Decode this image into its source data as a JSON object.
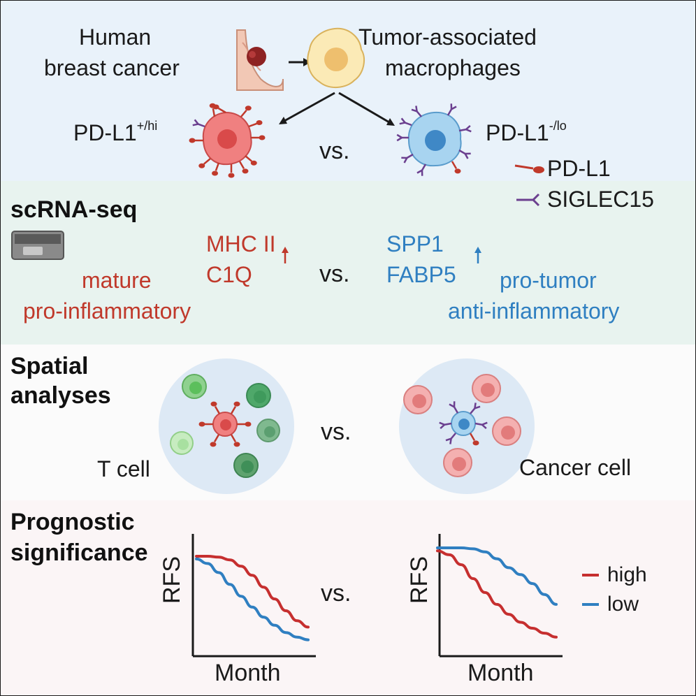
{
  "overview": {
    "source_label_1": "Human",
    "source_label_2": "breast cancer",
    "tam_label_1": "Tumor-associated",
    "tam_label_2": "macrophages",
    "hi_group_base": "PD-L1",
    "hi_group_sup": "+/hi",
    "lo_group_base": "PD-L1",
    "lo_group_sup": "-/lo",
    "vs": "vs."
  },
  "legend": {
    "pdl1": "PD-L1",
    "siglec15": "SIGLEC15",
    "pdl1_color": "#c0392b",
    "siglec15_color": "#6b3f8f"
  },
  "scrna": {
    "heading": "scRNA-seq",
    "hi_gene_1": "MHC II",
    "hi_gene_2": "C1Q",
    "hi_state_1": "mature",
    "hi_state_2": "pro-inflammatory",
    "vs": "vs.",
    "lo_gene_1": "SPP1",
    "lo_gene_2": "FABP5",
    "lo_state_1": "pro-tumor",
    "lo_state_2": "anti-inflammatory",
    "hi_color": "#c0392b",
    "lo_color": "#2f7fc1"
  },
  "spatial": {
    "heading_1": "Spatial",
    "heading_2": "analyses",
    "left_label": "T cell",
    "vs": "vs.",
    "right_label": "Cancer cell"
  },
  "prognostic": {
    "heading_1": "Prognostic",
    "heading_2": "significance",
    "vs": "vs.",
    "legend_high": "high",
    "legend_low": "low",
    "high_color": "#c62f2f",
    "low_color": "#2f7fc1"
  },
  "chart_data": [
    {
      "type": "line",
      "ylabel": "RFS",
      "xlabel": "Month",
      "x": [
        0,
        1,
        2,
        3,
        4,
        5,
        6,
        7,
        8,
        9,
        10
      ],
      "series": [
        {
          "name": "high",
          "values": [
            1.0,
            1.0,
            0.99,
            0.96,
            0.89,
            0.79,
            0.66,
            0.53,
            0.4,
            0.29,
            0.22
          ]
        },
        {
          "name": "low",
          "values": [
            0.97,
            0.92,
            0.82,
            0.69,
            0.56,
            0.44,
            0.33,
            0.24,
            0.16,
            0.11,
            0.08
          ]
        }
      ]
    },
    {
      "type": "line",
      "ylabel": "RFS",
      "xlabel": "Month",
      "x": [
        0,
        1,
        2,
        3,
        4,
        5,
        6,
        7,
        8,
        9,
        10
      ],
      "series": [
        {
          "name": "high",
          "values": [
            0.97,
            0.93,
            0.83,
            0.69,
            0.55,
            0.43,
            0.33,
            0.25,
            0.19,
            0.14,
            0.1
          ]
        },
        {
          "name": "low",
          "values": [
            1.0,
            1.0,
            1.0,
            0.99,
            0.96,
            0.89,
            0.8,
            0.73,
            0.64,
            0.53,
            0.43
          ]
        }
      ]
    }
  ]
}
